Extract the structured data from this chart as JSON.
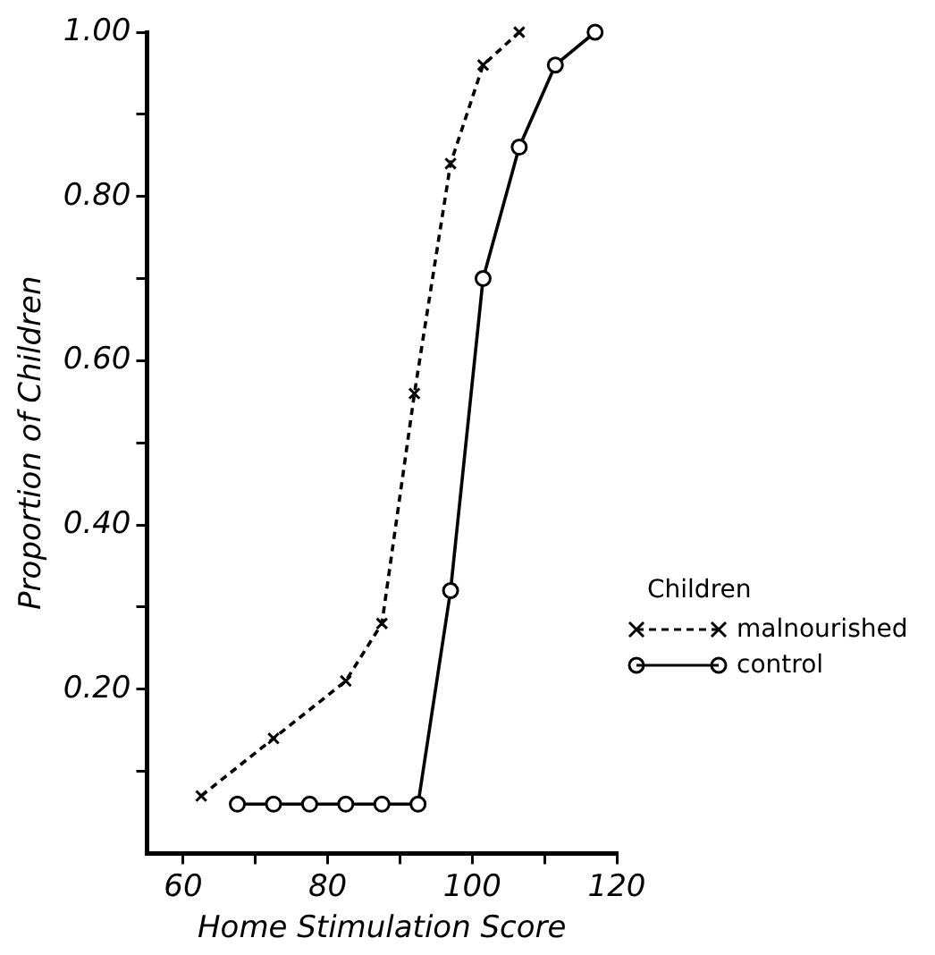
{
  "chart_data": {
    "type": "line",
    "xlabel": "Home Stimulation Score",
    "ylabel": "Proportion of Children",
    "legend_title": "Children",
    "legend": "bottom right",
    "grid": false,
    "xlim": [
      55,
      120
    ],
    "xticks": [
      60,
      {
        "value": 70,
        "label": null
      },
      80,
      {
        "value": 90,
        "label": null
      },
      100,
      {
        "value": 110,
        "label": null
      },
      120
    ],
    "ylim": [
      0,
      1
    ],
    "yticks": [
      {
        "value": 0.1,
        "label": null
      },
      {
        "value": 0.2,
        "label": "0.20"
      },
      {
        "value": 0.3,
        "label": null
      },
      {
        "value": 0.4,
        "label": "0.40"
      },
      {
        "value": 0.5,
        "label": null
      },
      {
        "value": 0.6,
        "label": "0.60"
      },
      {
        "value": 0.7,
        "label": null
      },
      {
        "value": 0.8,
        "label": "0.80"
      },
      {
        "value": 0.9,
        "label": null
      },
      {
        "value": 1,
        "label": "1.00"
      }
    ],
    "series": [
      {
        "name": "malnourished",
        "color": "#000000",
        "marker": "cross",
        "line_style": "dashed",
        "x": [
          62.5,
          72.5,
          82.5,
          87.5,
          92,
          97,
          101.5,
          106.5
        ],
        "values": [
          0.07,
          0.14,
          0.21,
          0.28,
          0.56,
          0.84,
          0.96,
          1.0
        ]
      },
      {
        "name": "control",
        "color": "#000000",
        "marker": "circle",
        "line_style": "solid",
        "x": [
          67.5,
          72.5,
          77.5,
          82.5,
          87.5,
          92.5,
          97,
          101.5,
          106.5,
          111.5,
          117
        ],
        "values": [
          0.06,
          0.06,
          0.06,
          0.06,
          0.06,
          0.06,
          0.32,
          0.7,
          0.86,
          0.96,
          1.0
        ]
      }
    ]
  }
}
